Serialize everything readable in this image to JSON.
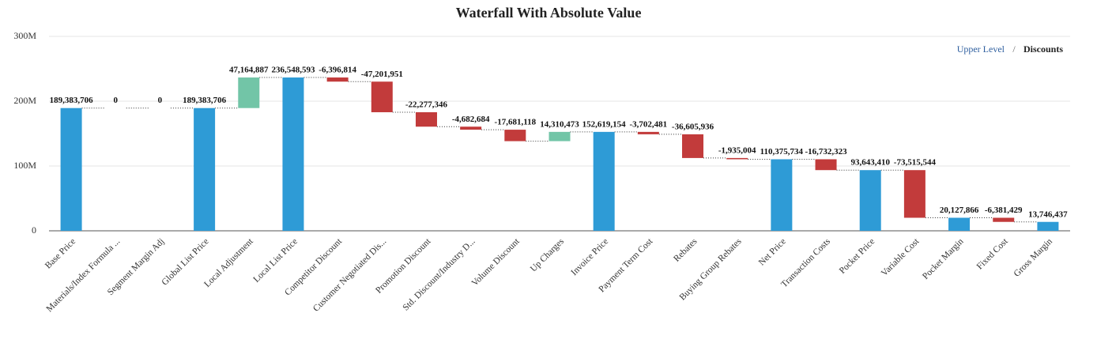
{
  "chart_data": {
    "type": "waterfall",
    "title": "Waterfall With Absolute Value",
    "breadcrumb": {
      "upper": "Upper Level",
      "separator": "/",
      "current": "Discounts"
    },
    "categories": [
      "Base Price",
      "Materials/Index Formula ...",
      "Segment Margin Adj",
      "Global List Price",
      "Local Adjustment",
      "Local List Price",
      "Competitor Discount",
      "Customer Negotiated Dis...",
      "Promotion Discount",
      "Std. Discount/Industry D...",
      "Volume Discount",
      "Up Charges",
      "Invoice Price",
      "Payment Term Cost",
      "Rebates",
      "Buying Group Rebates",
      "Net Price",
      "Transaction Costs",
      "Pocket Price",
      "Variable Cost",
      "Pocket Margin",
      "Fixed Cost",
      "Gross Margin"
    ],
    "values": [
      189383706,
      0,
      0,
      189383706,
      47164887,
      236548593,
      -6396814,
      -47201951,
      -22277346,
      -4682684,
      -17681118,
      14310473,
      152619154,
      -3702481,
      -36605936,
      -1935004,
      110375734,
      -16732323,
      93643410,
      -73515544,
      20127866,
      -6381429,
      13746437
    ],
    "value_labels": [
      "189,383,706",
      "0",
      "0",
      "189,383,706",
      "47,164,887",
      "236,548,593",
      "-6,396,814",
      "-47,201,951",
      "-22,277,346",
      "-4,682,684",
      "-17,681,118",
      "14,310,473",
      "152,619,154",
      "-3,702,481",
      "-36,605,936",
      "-1,935,004",
      "110,375,734",
      "-16,732,323",
      "93,643,410",
      "-73,515,544",
      "20,127,866",
      "-6,381,429",
      "13,746,437"
    ],
    "is_total": [
      true,
      false,
      false,
      true,
      false,
      true,
      false,
      false,
      false,
      false,
      false,
      false,
      true,
      false,
      false,
      false,
      true,
      false,
      true,
      false,
      true,
      false,
      true
    ],
    "total_color": "#2e9bd6",
    "increase_color": "#72c5a7",
    "decrease_color": "#c23b3b",
    "ylim": [
      0,
      300000000
    ],
    "yticks": [
      0,
      {
        "value": 100000000,
        "label": "100M"
      },
      {
        "value": 200000000,
        "label": "200M"
      },
      {
        "value": 300000000,
        "label": "300M"
      }
    ],
    "grid": true
  }
}
